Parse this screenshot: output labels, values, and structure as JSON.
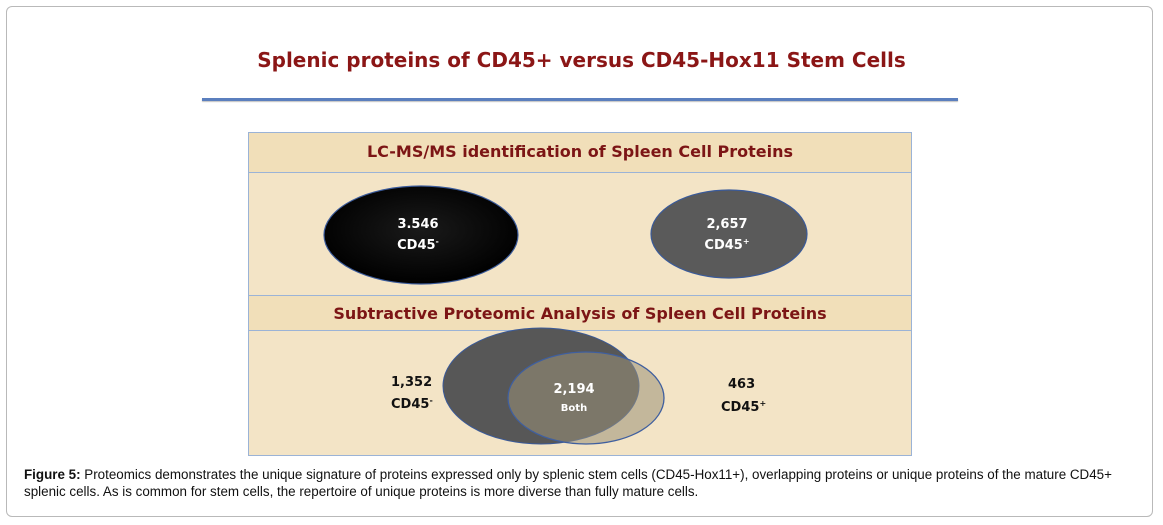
{
  "title": "Splenic proteins of CD45+ versus CD45-Hox11 Stem Cells",
  "section1": {
    "heading": "LC-MS/MS identification of Spleen Cell Proteins",
    "left": {
      "count": "3.546",
      "label": "CD45",
      "sup": "-"
    },
    "right": {
      "count": "2,657",
      "label": "CD45",
      "sup": "+"
    }
  },
  "section2": {
    "heading": "Subtractive Proteomic Analysis of Spleen Cell Proteins",
    "left": {
      "count": "1,352",
      "label": "CD45",
      "sup": "-"
    },
    "both": {
      "count": "2,194",
      "label": "Both"
    },
    "right": {
      "count": "463",
      "label": "CD45",
      "sup": "+"
    }
  },
  "caption": {
    "label": "Figure 5:",
    "text": " Proteomics demonstrates the unique signature of proteins expressed only by splenic stem cells (CD45-Hox11+), overlapping proteins or unique proteins of the mature CD45+ splenic cells. As is common for stem cells, the repertoire of unique proteins is more diverse than fully mature cells."
  },
  "colors": {
    "title": "#8b1616",
    "panel": "#f3e4c6",
    "band": "#f1dfb9",
    "ellipse_dark": "#0b0b0b",
    "ellipse_gray": "#595959",
    "ellipse_light": "#9a9278"
  }
}
